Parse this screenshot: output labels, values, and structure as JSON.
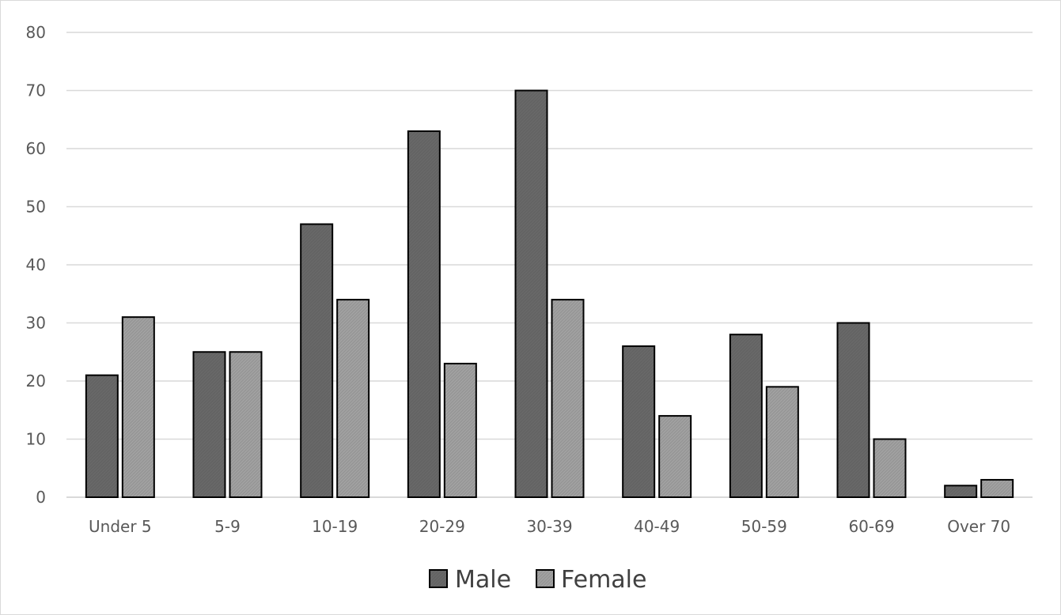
{
  "chart_data": {
    "type": "bar",
    "title": "",
    "xlabel": "",
    "ylabel": "",
    "categories": [
      "Under 5",
      "5-9",
      "10-19",
      "20-29",
      "30-39",
      "40-49",
      "50-59",
      "60-69",
      "Over 70"
    ],
    "series": [
      {
        "name": "Male",
        "values": [
          21,
          25,
          47,
          63,
          70,
          26,
          28,
          30,
          2
        ],
        "color": "#636363"
      },
      {
        "name": "Female",
        "values": [
          31,
          25,
          34,
          23,
          34,
          14,
          19,
          10,
          3
        ],
        "color": "#969696"
      }
    ],
    "ylim": [
      0,
      80
    ],
    "yticks": [
      "0",
      "10",
      "20",
      "30",
      "40",
      "50",
      "60",
      "70",
      "80"
    ],
    "grid": true,
    "legend_position": "bottom",
    "colors": {
      "grid": "#d9d9d9",
      "axis": "#d9d9d9",
      "bar_stroke": "#000000",
      "tick_text": "#595959"
    }
  }
}
